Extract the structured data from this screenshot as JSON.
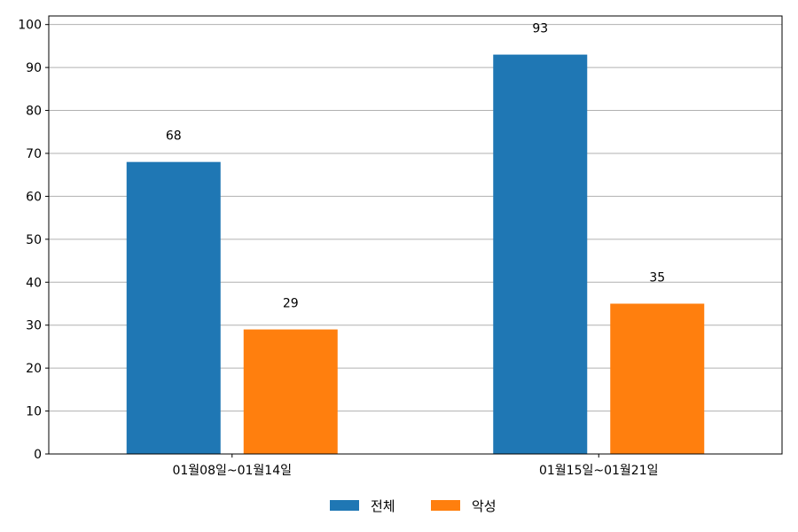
{
  "chart_data": {
    "type": "bar",
    "categories": [
      "01월08일~01월14일",
      "01월15일~01월21일"
    ],
    "series": [
      {
        "name": "전체",
        "values": [
          68,
          93
        ],
        "color": "#1f77b4"
      },
      {
        "name": "악성",
        "values": [
          29,
          35
        ],
        "color": "#ff7f0e"
      }
    ],
    "ylim": [
      0,
      102
    ],
    "yticks": [
      0,
      10,
      20,
      30,
      40,
      50,
      60,
      70,
      80,
      90,
      100
    ],
    "grid": "horizontal",
    "legend_position": "bottom-center",
    "data_labels": true
  }
}
